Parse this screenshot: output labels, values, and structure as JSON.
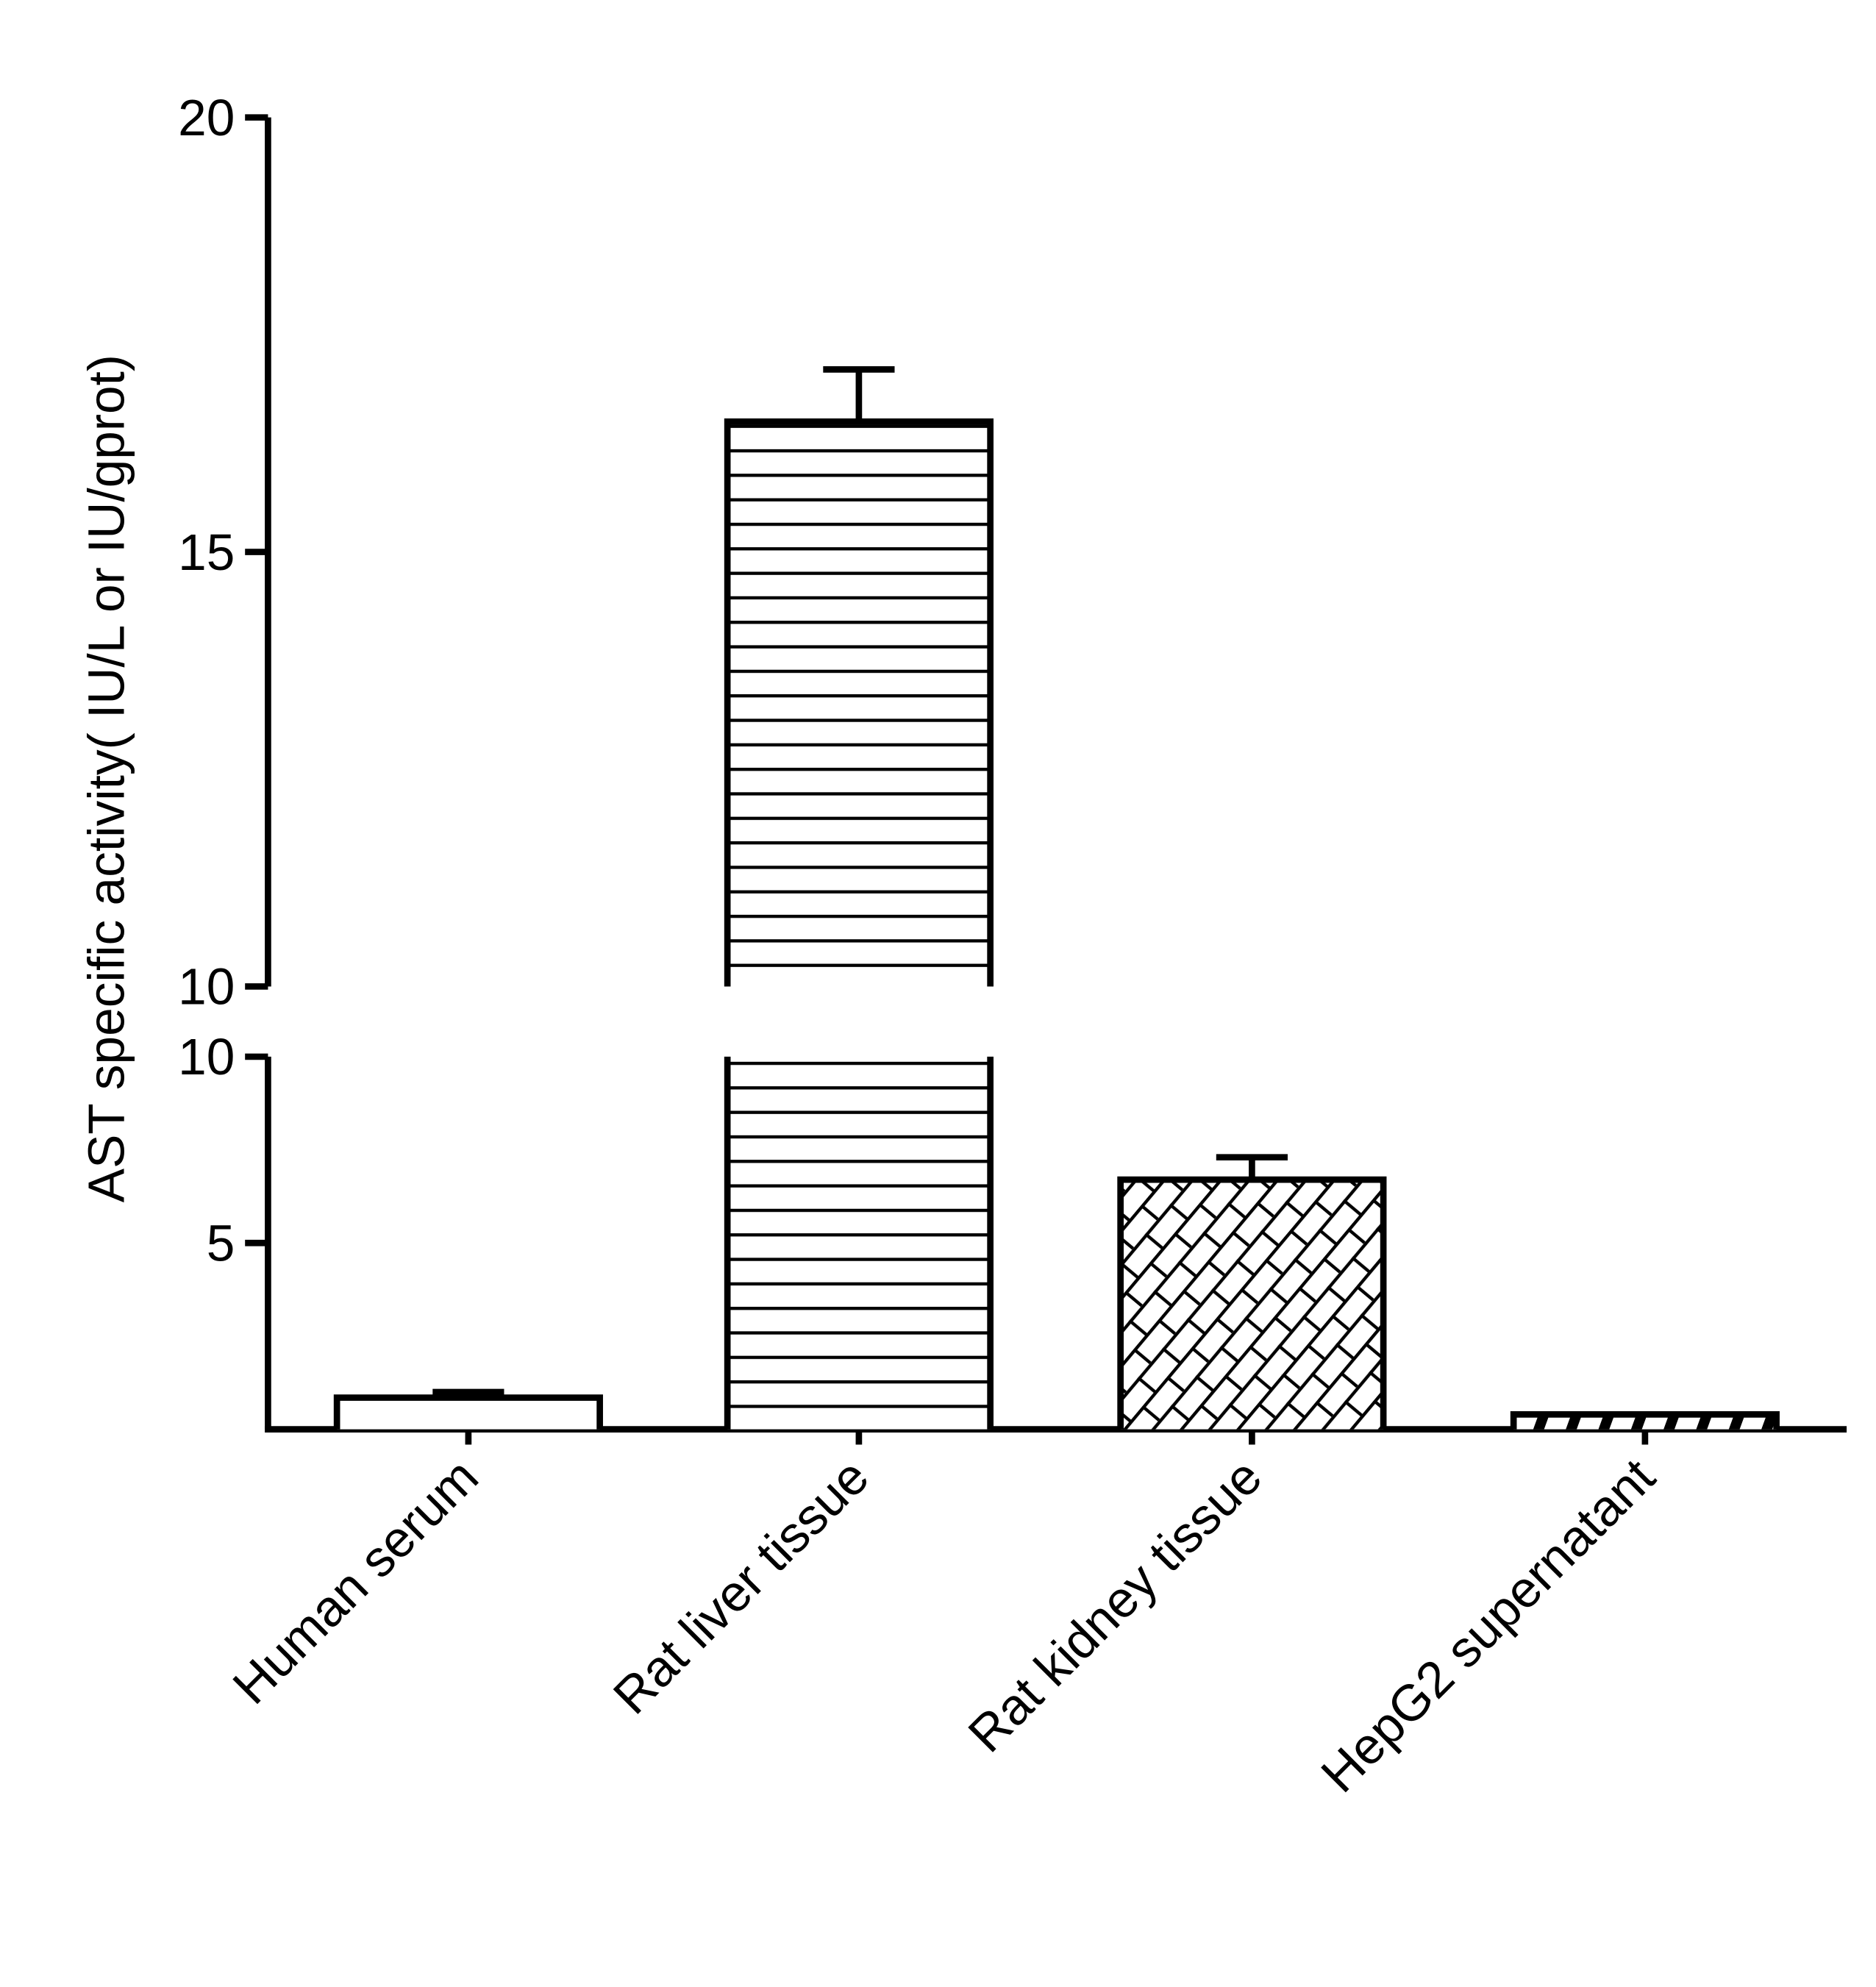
{
  "chart_data": {
    "type": "bar",
    "title": "",
    "xlabel": "",
    "ylabel": "AST specific activity( IU/L or IU/gprot)",
    "categories": [
      "Human serum",
      "Rat liver tissue",
      "Rat kidney tissue",
      "HepG2 supernatant"
    ],
    "values": [
      0.85,
      16.5,
      6.7,
      0.4
    ],
    "errors": [
      0.15,
      0.6,
      0.6,
      0.0
    ],
    "patterns": [
      "dots",
      "horizontal-lines",
      "brick",
      "diagonal-hatch"
    ],
    "y_axis_break": true,
    "segments": [
      {
        "range": [
          0,
          10
        ],
        "ticks": [
          5,
          10
        ],
        "tick_labels": [
          "5",
          "10"
        ]
      },
      {
        "range": [
          10,
          20
        ],
        "ticks": [
          10,
          15,
          20
        ],
        "tick_labels": [
          "10",
          "15",
          "20"
        ]
      }
    ],
    "grid": false,
    "colors": {
      "stroke": "#000000",
      "fill": "#ffffff"
    }
  }
}
